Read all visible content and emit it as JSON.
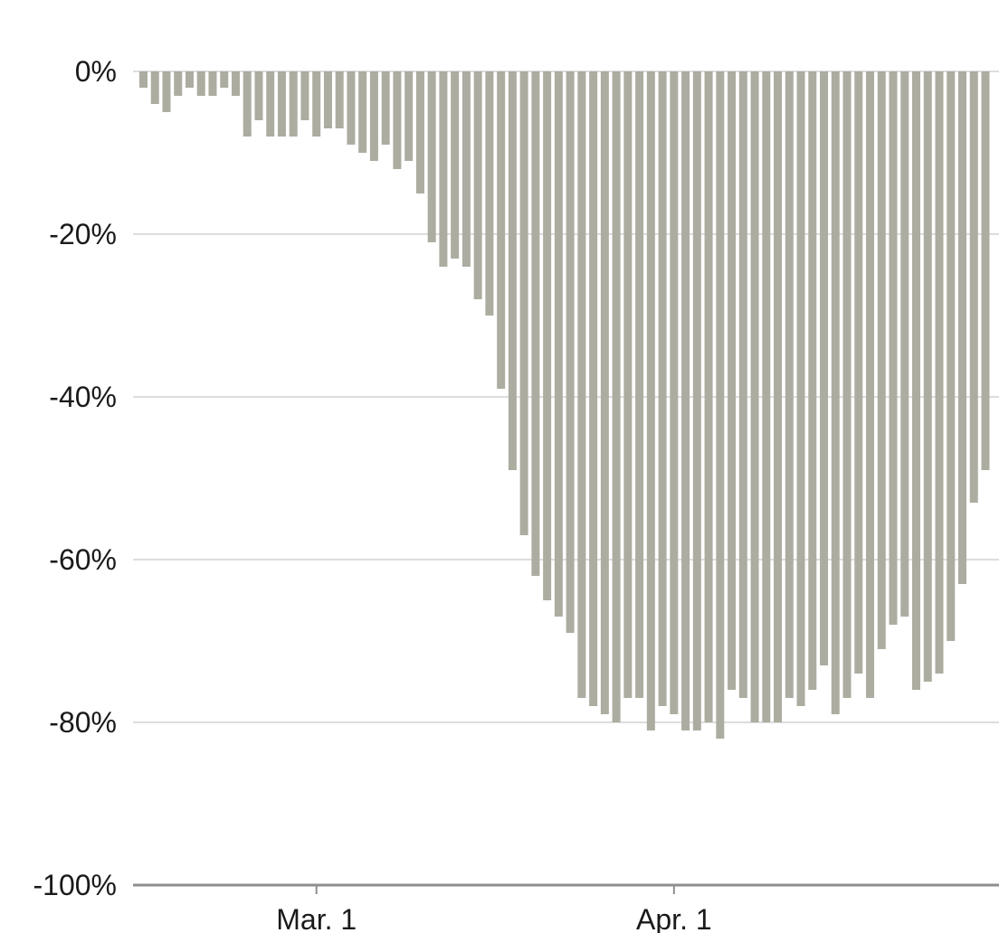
{
  "chart_data": {
    "type": "bar",
    "title": "",
    "xlabel": "",
    "ylabel": "",
    "ylim": [
      -100,
      0
    ],
    "grid": true,
    "bar_color": "#acaca0",
    "y_ticks": [
      {
        "value": 0,
        "label": "0%"
      },
      {
        "value": -20,
        "label": "-20%"
      },
      {
        "value": -40,
        "label": "-40%"
      },
      {
        "value": -60,
        "label": "-60%"
      },
      {
        "value": -80,
        "label": "-80%"
      },
      {
        "value": -100,
        "label": "-100%"
      }
    ],
    "x_ticks": [
      {
        "date": "2020-03-01",
        "label": "Mar. 1"
      },
      {
        "date": "2020-04-01",
        "label": "Apr. 1"
      }
    ],
    "x": [
      "2020-02-15",
      "2020-02-16",
      "2020-02-17",
      "2020-02-18",
      "2020-02-19",
      "2020-02-20",
      "2020-02-21",
      "2020-02-22",
      "2020-02-23",
      "2020-02-24",
      "2020-02-25",
      "2020-02-26",
      "2020-02-27",
      "2020-02-28",
      "2020-02-29",
      "2020-03-01",
      "2020-03-02",
      "2020-03-03",
      "2020-03-04",
      "2020-03-05",
      "2020-03-06",
      "2020-03-07",
      "2020-03-08",
      "2020-03-09",
      "2020-03-10",
      "2020-03-11",
      "2020-03-12",
      "2020-03-13",
      "2020-03-14",
      "2020-03-15",
      "2020-03-16",
      "2020-03-17",
      "2020-03-18",
      "2020-03-19",
      "2020-03-20",
      "2020-03-21",
      "2020-03-22",
      "2020-03-23",
      "2020-03-24",
      "2020-03-25",
      "2020-03-26",
      "2020-03-27",
      "2020-03-28",
      "2020-03-29",
      "2020-03-30",
      "2020-03-31",
      "2020-04-01",
      "2020-04-02",
      "2020-04-03",
      "2020-04-04",
      "2020-04-05",
      "2020-04-06",
      "2020-04-07",
      "2020-04-08",
      "2020-04-09",
      "2020-04-10",
      "2020-04-11",
      "2020-04-12",
      "2020-04-13",
      "2020-04-14",
      "2020-04-15",
      "2020-04-16",
      "2020-04-17",
      "2020-04-18",
      "2020-04-19",
      "2020-04-20",
      "2020-04-21",
      "2020-04-22",
      "2020-04-23",
      "2020-04-24",
      "2020-04-25",
      "2020-04-26",
      "2020-04-27",
      "2020-04-28"
    ],
    "values": [
      -2,
      -4,
      -5,
      -3,
      -2,
      -3,
      -3,
      -2,
      -3,
      -8,
      -6,
      -8,
      -8,
      -8,
      -6,
      -8,
      -7,
      -7,
      -9,
      -10,
      -11,
      -9,
      -12,
      -11,
      -15,
      -21,
      -24,
      -23,
      -24,
      -28,
      -30,
      -39,
      -49,
      -57,
      -62,
      -65,
      -67,
      -69,
      -77,
      -78,
      -79,
      -80,
      -77,
      -77,
      -81,
      -78,
      -79,
      -81,
      -81,
      -80,
      -82,
      -76,
      -77,
      -80,
      -80,
      -80,
      -77,
      -78,
      -76,
      -73,
      -79,
      -77,
      -74,
      -77,
      -71,
      -68,
      -67,
      -76,
      -75,
      -74,
      -70,
      -63,
      -53,
      -49
    ]
  }
}
